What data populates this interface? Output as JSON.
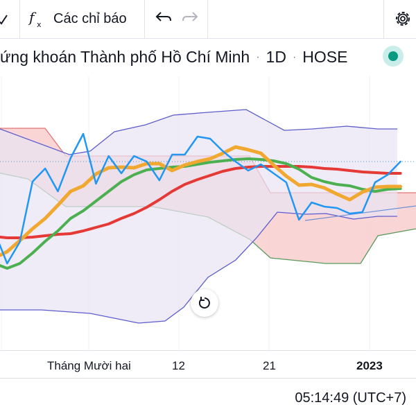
{
  "toolbar": {
    "indicators_label": "Các chỉ báo",
    "icons": [
      "chevron-icon",
      "function-icon",
      "undo-icon",
      "redo-icon",
      "gear-icon"
    ]
  },
  "symbol": {
    "exchange_name": "ứng khoán Thành phố Hồ Chí Minh",
    "interval": "1D",
    "exchange": "HOSE",
    "status_color": "#089981"
  },
  "time_axis": {
    "labels": [
      "Tháng Mười hai",
      "12",
      "21",
      "2023"
    ]
  },
  "clock": {
    "time": "05:14:49",
    "timezone": "(UTC+7)"
  },
  "chart_data": {
    "type": "line",
    "title": "",
    "xlabel": "",
    "ylabel": "",
    "y_scale_labels": "not visible",
    "series": [
      {
        "color": "#2196f3",
        "values": [
          334,
          380,
          349,
          262,
          243,
          276,
          228,
          193,
          265,
          225,
          250,
          225,
          233,
          260,
          223,
          223,
          197,
          200,
          218,
          233,
          246,
          237,
          250,
          263,
          317,
          292,
          298,
          300,
          308,
          306,
          263,
          252,
          233
        ]
      },
      {
        "color": "#f0a830",
        "values": [
          372,
          363,
          347,
          330,
          315,
          296,
          276,
          268,
          251,
          242,
          241,
          242,
          236,
          236,
          246,
          238,
          233,
          229,
          221,
          212,
          216,
          221,
          238,
          254,
          267,
          266,
          271,
          280,
          288,
          277,
          270,
          269,
          269
        ]
      },
      {
        "color": "#4caf50",
        "values": [
          380,
          387,
          380,
          365,
          348,
          333,
          315,
          304,
          290,
          276,
          262,
          252,
          245,
          243,
          241,
          240,
          237,
          234,
          232,
          230,
          229,
          230,
          232,
          236,
          244,
          256,
          262,
          266,
          268,
          273,
          276,
          273,
          272
        ]
      },
      {
        "color": "#e53935",
        "values": [
          341,
          343,
          343,
          342,
          340,
          338,
          337,
          333,
          328,
          323,
          315,
          308,
          299,
          288,
          276,
          266,
          259,
          253,
          247,
          243,
          241,
          240,
          240,
          240,
          240,
          241,
          243,
          244,
          246,
          248,
          249,
          250,
          250
        ]
      }
    ],
    "cloud": {
      "upper_line_color": "#e57373",
      "lower_line_color": "#5a9a5a",
      "bullish_fill": "#e0e8d8",
      "bearish_fill": "#f8d0d0"
    },
    "bands": {
      "line_color": "#5c5ccc",
      "fill_color": "#e8e4f4"
    },
    "trend_line": {
      "color": "#6b8fd6"
    },
    "reference_line": {
      "color": "#4a8fc9",
      "style": "dotted"
    }
  }
}
